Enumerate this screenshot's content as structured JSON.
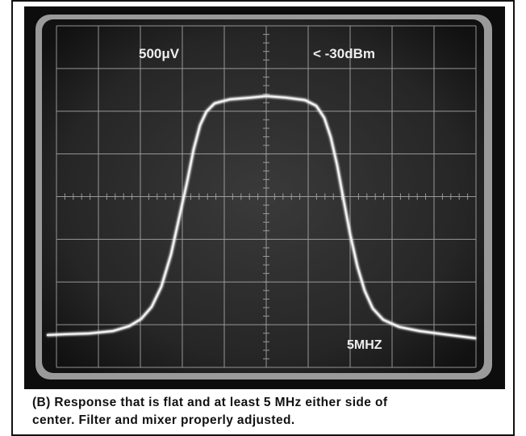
{
  "screen": {
    "amplitude_label": "500μV",
    "level_label": "< -30dBm",
    "span_label": "5MHZ"
  },
  "caption": {
    "lines": [
      "(B) Response that is flat and at least 5 MHz either side of",
      "center. Filter and mixer properly adjusted."
    ]
  }
}
